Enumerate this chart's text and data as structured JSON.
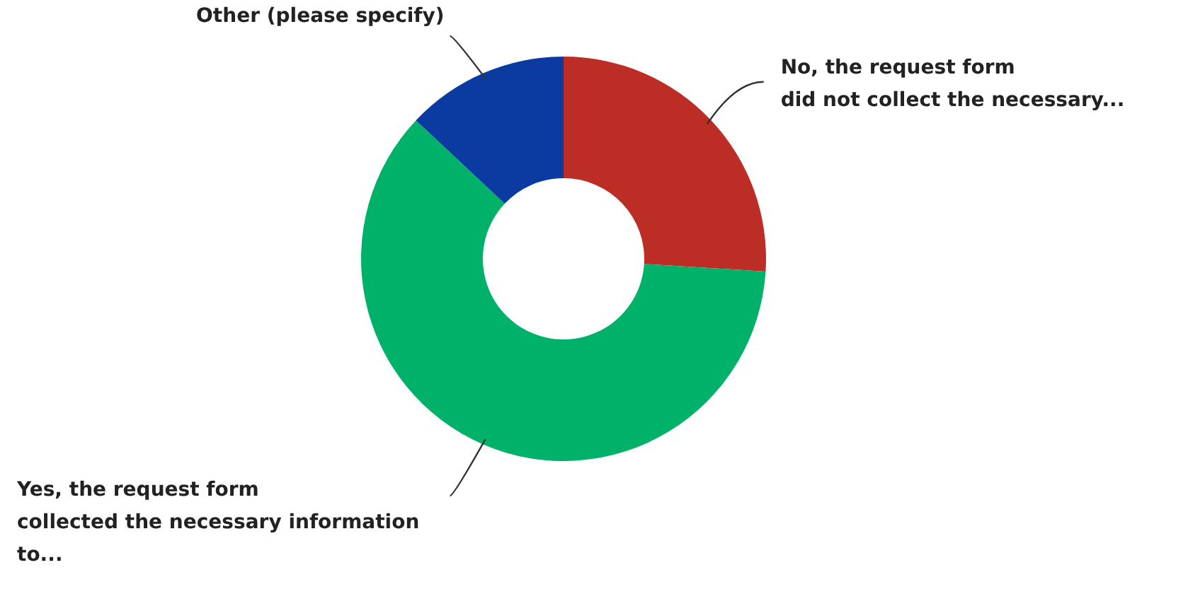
{
  "chart_data": {
    "type": "donut",
    "categories": [
      "No, the request form\ndid not collect the necessary...",
      "Yes, the request form\ncollected the necessary information\nto...",
      "Other (please specify)"
    ],
    "values": [
      26,
      61,
      13
    ],
    "colors": [
      "#bb2d25",
      "#00b16a",
      "#0b3aa0"
    ],
    "legend": false
  }
}
